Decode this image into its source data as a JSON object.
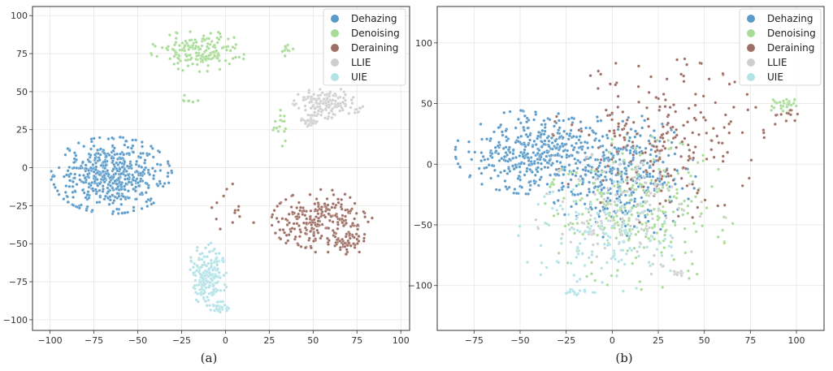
{
  "chart_data": [
    {
      "id": "a",
      "type": "scatter",
      "caption": "(a)",
      "xlim": [
        -110,
        105
      ],
      "ylim": [
        -107,
        106
      ],
      "xticks": [
        -100,
        -75,
        -50,
        -25,
        0,
        25,
        50,
        75,
        100
      ],
      "yticks": [
        -100,
        -75,
        -50,
        -25,
        0,
        25,
        50,
        75,
        100
      ],
      "grid": true,
      "legend_position": "top-right",
      "series": [
        {
          "name": "Dehazing",
          "color": "#5b9bc9",
          "clusters": [
            {
              "cx": -65,
              "cy": -5,
              "rx": 30,
              "ry": 22,
              "n": 520
            }
          ]
        },
        {
          "name": "Denoising",
          "color": "#a8dc96",
          "clusters": [
            {
              "cx": -15,
              "cy": 77,
              "rx": 24,
              "ry": 12,
              "n": 170
            },
            {
              "cx": 35,
              "cy": 78,
              "rx": 4,
              "ry": 4,
              "n": 10
            },
            {
              "cx": 32,
              "cy": 28,
              "rx": 5,
              "ry": 12,
              "n": 16
            },
            {
              "cx": -20,
              "cy": 45,
              "rx": 6,
              "ry": 10,
              "n": 8
            }
          ]
        },
        {
          "name": "Deraining",
          "color": "#9e6f65",
          "clusters": [
            {
              "cx": 55,
              "cy": -35,
              "rx": 25,
              "ry": 18,
              "n": 240
            },
            {
              "cx": 70,
              "cy": -50,
              "rx": 10,
              "ry": 6,
              "n": 40
            },
            {
              "cx": 5,
              "cy": -25,
              "rx": 15,
              "ry": 15,
              "n": 14
            }
          ]
        },
        {
          "name": "LLIE",
          "color": "#cfcfcf",
          "clusters": [
            {
              "cx": 58,
              "cy": 42,
              "rx": 18,
              "ry": 9,
              "n": 160
            },
            {
              "cx": 48,
              "cy": 31,
              "rx": 5,
              "ry": 4,
              "n": 30
            }
          ]
        },
        {
          "name": "UIE",
          "color": "#b2e2e8",
          "clusters": [
            {
              "cx": -10,
              "cy": -70,
              "rx": 10,
              "ry": 18,
              "n": 200
            },
            {
              "cx": -3,
              "cy": -92,
              "rx": 5,
              "ry": 4,
              "n": 40
            }
          ]
        }
      ]
    },
    {
      "id": "b",
      "type": "scatter",
      "caption": "(b)",
      "xlim": [
        -95,
        115
      ],
      "ylim": [
        -137,
        130
      ],
      "xticks": [
        -75,
        -50,
        -25,
        0,
        25,
        50,
        75,
        100
      ],
      "yticks": [
        -100,
        -50,
        0,
        50,
        100
      ],
      "grid": true,
      "legend_position": "top-right",
      "series": [
        {
          "name": "Dehazing",
          "color": "#5b9bc9",
          "clusters": [
            {
              "cx": -45,
              "cy": 10,
              "rx": 35,
              "ry": 30,
              "n": 380
            },
            {
              "cx": 5,
              "cy": -10,
              "rx": 35,
              "ry": 45,
              "n": 380
            }
          ]
        },
        {
          "name": "Denoising",
          "color": "#a8dc96",
          "clusters": [
            {
              "cx": 15,
              "cy": -40,
              "rx": 45,
              "ry": 55,
              "n": 260
            },
            {
              "cx": 92,
              "cy": 48,
              "rx": 10,
              "ry": 6,
              "n": 28
            }
          ]
        },
        {
          "name": "Deraining",
          "color": "#9e6f65",
          "clusters": [
            {
              "cx": 25,
              "cy": 20,
              "rx": 50,
              "ry": 60,
              "n": 230
            },
            {
              "cx": 95,
              "cy": 40,
              "rx": 8,
              "ry": 10,
              "n": 12
            }
          ]
        },
        {
          "name": "LLIE",
          "color": "#cfcfcf",
          "clusters": [
            {
              "cx": 10,
              "cy": -40,
              "rx": 45,
              "ry": 45,
              "n": 110
            },
            {
              "cx": 36,
              "cy": -90,
              "rx": 3,
              "ry": 2,
              "n": 18
            },
            {
              "cx": -12,
              "cy": -56,
              "rx": 3,
              "ry": 2,
              "n": 16
            }
          ]
        },
        {
          "name": "UIE",
          "color": "#b2e2e8",
          "clusters": [
            {
              "cx": -5,
              "cy": -60,
              "rx": 40,
              "ry": 40,
              "n": 140
            },
            {
              "cx": -22,
              "cy": -105,
              "rx": 4,
              "ry": 3,
              "n": 10
            }
          ]
        }
      ]
    }
  ]
}
